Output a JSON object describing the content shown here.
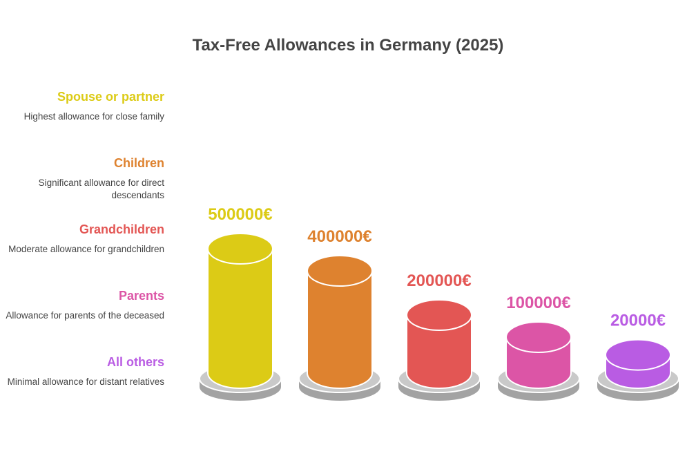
{
  "chart_data": {
    "type": "bar",
    "title": "Tax-Free Allowances in Germany (2025)",
    "categories": [
      "Spouse or partner",
      "Children",
      "Grandchildren",
      "Parents",
      "All others"
    ],
    "descriptions": [
      "Highest allowance for close family",
      "Significant allowance for direct descendants",
      "Moderate allowance for grandchildren",
      "Allowance for parents of the deceased",
      "Minimal allowance for distant relatives"
    ],
    "values": [
      500000,
      400000,
      200000,
      100000,
      20000
    ],
    "value_labels": [
      "500000€",
      "400000€",
      "200000€",
      "100000€",
      "20000€"
    ],
    "unit": "€",
    "colors": [
      "#dccb16",
      "#de822f",
      "#e35654",
      "#dc55a6",
      "#b95ce3"
    ],
    "legend_position": "left",
    "grid": false
  }
}
